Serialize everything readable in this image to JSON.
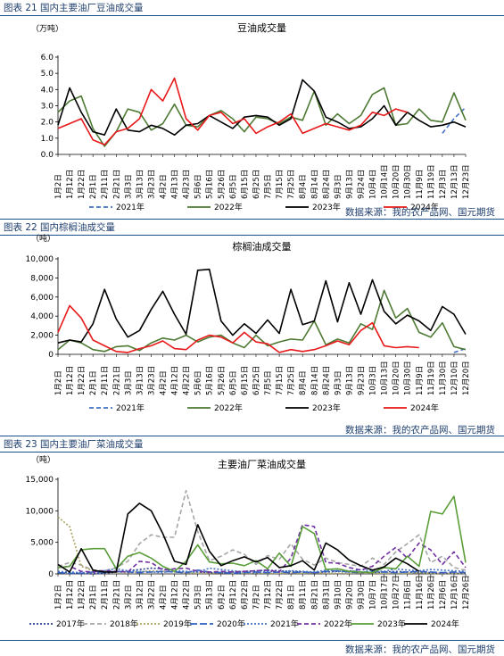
{
  "panels": [
    {
      "heading": "图表 21 国内主要油厂豆油成交量",
      "source": "数据来源：我的农产品网、国元期货"
    },
    {
      "heading": "图表 22 国内棕榈油成交量",
      "source": "数据来源：我的农产品网、国元期货"
    },
    {
      "heading": "图表 23 国内主要油厂菜油成交量",
      "source": "数据来源：我的农产品网、国元期货"
    }
  ],
  "chart_data": [
    {
      "type": "line",
      "title": "豆油成交量",
      "ylabel": "（万吨）",
      "ylim": [
        0,
        6
      ],
      "yticks": [
        "0.0",
        "1.0",
        "2.0",
        "3.0",
        "4.0",
        "5.0",
        "6.0"
      ],
      "categories": [
        "1月2日",
        "1月12日",
        "1月22日",
        "2月1日",
        "2月11日",
        "2月21日",
        "3月3日",
        "3月13日",
        "3月23日",
        "4月2日",
        "4月13日",
        "4月23日",
        "5月6日",
        "5月16日",
        "5月26日",
        "6月5日",
        "6月15日",
        "6月25日",
        "7月5日",
        "7月15日",
        "7月25日",
        "8月4日",
        "8月14日",
        "8月24日",
        "9月3日",
        "9月13日",
        "9月24日",
        "10月4日",
        "10月14日",
        "10月20日",
        "10月30日",
        "11月9日",
        "11月19日",
        "12月3日",
        "12月13日",
        "12月23日"
      ],
      "legend": "bottom",
      "series": [
        {
          "name": "2021年",
          "color": "#4472c4",
          "dash": "5,3",
          "values": [
            null,
            null,
            null,
            null,
            null,
            null,
            null,
            null,
            null,
            null,
            null,
            null,
            null,
            null,
            null,
            null,
            null,
            null,
            null,
            null,
            null,
            null,
            null,
            null,
            null,
            null,
            null,
            null,
            null,
            null,
            null,
            null,
            null,
            1.3,
            2.2,
            2.9
          ]
        },
        {
          "name": "2022年",
          "color": "#4e7a34",
          "dash": "",
          "values": [
            2.6,
            3.3,
            3.6,
            1.6,
            0.5,
            1.4,
            2.8,
            2.6,
            1.5,
            1.9,
            3.1,
            1.8,
            1.7,
            2.4,
            2.7,
            2.2,
            1.4,
            2.3,
            2.2,
            1.9,
            2.3,
            2.1,
            3.9,
            1.8,
            2.5,
            1.9,
            2.4,
            3.7,
            4.1,
            1.8,
            1.9,
            2.8,
            2.1,
            2.0,
            3.8,
            2.1
          ]
        },
        {
          "name": "2023年",
          "color": "#000000",
          "dash": "",
          "values": [
            1.8,
            4.1,
            2.6,
            1.4,
            1.2,
            2.8,
            1.5,
            1.4,
            1.8,
            1.6,
            1.2,
            1.8,
            1.9,
            2.4,
            2.0,
            1.6,
            2.3,
            2.4,
            2.3,
            1.8,
            2.2,
            4.6,
            3.9,
            2.3,
            2.0,
            1.6,
            1.7,
            2.2,
            3.0,
            1.8,
            2.6,
            2.1,
            1.7,
            1.8,
            2.0,
            1.7
          ]
        },
        {
          "name": "2024年",
          "color": "#e8191a",
          "dash": "",
          "values": [
            1.6,
            1.9,
            2.2,
            0.9,
            0.6,
            1.4,
            1.6,
            2.2,
            4.0,
            3.3,
            4.7,
            2.2,
            1.5,
            2.4,
            2.6,
            1.9,
            2.2,
            1.3,
            1.7,
            2.0,
            2.5,
            1.3,
            1.6,
            1.9,
            1.7,
            1.5,
            1.8,
            2.6,
            2.4,
            2.8,
            2.6,
            null,
            null,
            null,
            null,
            null
          ]
        }
      ]
    },
    {
      "type": "line",
      "title": "棕榈油成交量",
      "ylabel": "（吨）",
      "ylim": [
        0,
        10000
      ],
      "yticks": [
        "0",
        "2,000",
        "4,000",
        "6,000",
        "8,000",
        "10,000"
      ],
      "categories": [
        "1月2日",
        "1月12日",
        "1月22日",
        "2月1日",
        "2月11日",
        "2月21日",
        "3月3日",
        "3月13日",
        "3月23日",
        "4月2日",
        "4月12日",
        "4月22日",
        "5月6日",
        "5月16日",
        "5月26日",
        "6月5日",
        "6月15日",
        "6月25日",
        "7月5日",
        "7月15日",
        "7月25日",
        "8月4日",
        "8月14日",
        "8月24日",
        "9月3日",
        "9月13日",
        "9月23日",
        "10月3日",
        "10月13日",
        "10月20日",
        "10月30日",
        "11月9日",
        "11月19日",
        "11月30日",
        "12月10日",
        "12月20日"
      ],
      "legend": "bottom",
      "series": [
        {
          "name": "2021年",
          "color": "#4472c4",
          "dash": "5,3",
          "values": [
            null,
            null,
            null,
            null,
            null,
            null,
            null,
            null,
            null,
            null,
            null,
            null,
            null,
            null,
            null,
            null,
            null,
            null,
            null,
            null,
            null,
            null,
            null,
            null,
            null,
            null,
            null,
            null,
            null,
            null,
            null,
            null,
            null,
            null,
            200,
            600
          ]
        },
        {
          "name": "2022年",
          "color": "#4e7a34",
          "dash": "",
          "values": [
            500,
            1500,
            1200,
            500,
            300,
            800,
            900,
            400,
            1200,
            1700,
            1500,
            2000,
            1300,
            1800,
            2000,
            1200,
            700,
            2000,
            900,
            1300,
            1600,
            1500,
            3500,
            1000,
            1600,
            1200,
            3200,
            2600,
            6700,
            3800,
            4800,
            2300,
            1800,
            3300,
            800,
            500
          ]
        },
        {
          "name": "2023年",
          "color": "#000000",
          "dash": "",
          "values": [
            1200,
            1500,
            1300,
            3200,
            6800,
            3700,
            1800,
            2500,
            4700,
            6600,
            4200,
            2100,
            8800,
            8900,
            3500,
            2000,
            3200,
            2200,
            3600,
            2200,
            6800,
            3100,
            3500,
            7700,
            3400,
            7500,
            4200,
            7800,
            4500,
            3200,
            4100,
            3500,
            2500,
            5000,
            4200,
            2100
          ]
        },
        {
          "name": "2024年",
          "color": "#e8191a",
          "dash": "",
          "values": [
            2300,
            5100,
            3800,
            1500,
            900,
            300,
            200,
            600,
            900,
            1400,
            600,
            500,
            1500,
            2000,
            1800,
            1200,
            2300,
            1300,
            1100,
            200,
            500,
            300,
            500,
            900,
            1400,
            1000,
            2500,
            3300,
            900,
            700,
            800,
            700,
            null,
            null,
            null,
            null
          ]
        }
      ]
    },
    {
      "type": "line",
      "title": "主要油厂菜油成交量",
      "ylabel": "（吨）",
      "ylim": [
        0,
        15000
      ],
      "yticks": [
        "0",
        "5,000",
        "10,000",
        "15,000"
      ],
      "categories": [
        "1月2日",
        "1月12日",
        "1月22日",
        "2月1日",
        "2月11日",
        "2月21日",
        "3月2日",
        "3月12日",
        "3月22日",
        "4月2日",
        "4月12日",
        "4月22日",
        "5月3日",
        "5月13日",
        "6月2日",
        "6月12日",
        "6月22日",
        "7月2日",
        "7月12日",
        "7月22日",
        "8月1日",
        "8月11日",
        "8月21日",
        "8月31日",
        "9月10日",
        "9月20日",
        "9月30日",
        "10月7日",
        "10月17日",
        "10月27日",
        "11月6日",
        "11月16日",
        "11月26日",
        "12月6日",
        "12月16日",
        "12月26日"
      ],
      "legend": "bottom",
      "series": [
        {
          "name": "2017年",
          "color": "#2f3f8f",
          "dash": "2,2",
          "values": [
            300,
            200,
            100,
            0,
            100,
            300,
            500,
            700,
            900,
            800,
            400,
            300,
            300,
            200,
            200,
            300,
            400,
            500,
            600,
            500,
            400,
            300,
            200,
            300,
            400,
            500,
            300,
            200,
            300,
            400,
            300,
            200,
            200,
            100,
            100,
            100
          ]
        },
        {
          "name": "2018年",
          "color": "#a6a6a6",
          "dash": "5,3",
          "values": [
            1200,
            1800,
            1400,
            600,
            500,
            1000,
            2000,
            4800,
            6200,
            5800,
            5800,
            13200,
            6700,
            2100,
            2800,
            3800,
            3100,
            1500,
            2900,
            2300,
            4800,
            2300,
            1400,
            2500,
            1800,
            1500,
            1200,
            2500,
            1500,
            3500,
            4800,
            6200,
            1800,
            2800,
            1000,
            600
          ]
        },
        {
          "name": "2019年",
          "color": "#a9a35f",
          "dash": "2,2",
          "values": [
            9000,
            7500,
            1200,
            500,
            400,
            300,
            200,
            300,
            500,
            400,
            300,
            200,
            100,
            100,
            200,
            100,
            100,
            200,
            100,
            100,
            200,
            100,
            200,
            100,
            100,
            100,
            200,
            100,
            100,
            100,
            100,
            200,
            100,
            100,
            100,
            100
          ]
        },
        {
          "name": "2020年",
          "color": "#2f5fbf",
          "dash": "8,3",
          "values": [
            200,
            100,
            100,
            300,
            200,
            400,
            300,
            200,
            300,
            400,
            300,
            200,
            600,
            300,
            200,
            100,
            200,
            300,
            200,
            300,
            200,
            300,
            200,
            400,
            500,
            300,
            200,
            400,
            300,
            200,
            300,
            400,
            300,
            200,
            300,
            200
          ]
        },
        {
          "name": "2021年",
          "color": "#4472c4",
          "dash": "2,2",
          "values": [
            400,
            300,
            200,
            200,
            500,
            800,
            500,
            400,
            300,
            200,
            500,
            400,
            300,
            900,
            700,
            500,
            300,
            200,
            400,
            300,
            500,
            400,
            300,
            600,
            400,
            300,
            700,
            500,
            400,
            800,
            600,
            500,
            700,
            600,
            500,
            400
          ]
        },
        {
          "name": "2022年",
          "color": "#7030a0",
          "dash": "5,3",
          "values": [
            1000,
            1200,
            400,
            300,
            500,
            400,
            300,
            2000,
            1800,
            600,
            800,
            900,
            400,
            300,
            400,
            300,
            400,
            500,
            600,
            300,
            2500,
            7800,
            7500,
            1800,
            1700,
            1000,
            600,
            1200,
            2800,
            4200,
            2500,
            4900,
            3800,
            1500,
            3500,
            1000
          ]
        },
        {
          "name": "2023年",
          "color": "#5a9e3a",
          "dash": "",
          "values": [
            1000,
            1200,
            3800,
            4000,
            4000,
            800,
            2800,
            3400,
            2500,
            1200,
            400,
            2000,
            4600,
            1900,
            1600,
            1700,
            1300,
            2100,
            800,
            3300,
            1200,
            7500,
            6400,
            700,
            800,
            400,
            300,
            200,
            1000,
            800,
            2800,
            1200,
            9900,
            9500,
            12300,
            1800
          ]
        },
        {
          "name": "2024年",
          "color": "#000000",
          "dash": "",
          "values": [
            1500,
            300,
            4000,
            600,
            300,
            300,
            9500,
            11200,
            10000,
            6400,
            2000,
            1500,
            7800,
            3600,
            1300,
            2100,
            2700,
            1900,
            2600,
            1000,
            1300,
            2100,
            600,
            4900,
            3800,
            2200,
            1300,
            600,
            1100,
            2500,
            1600,
            400,
            null,
            null,
            null,
            null
          ]
        }
      ]
    }
  ]
}
